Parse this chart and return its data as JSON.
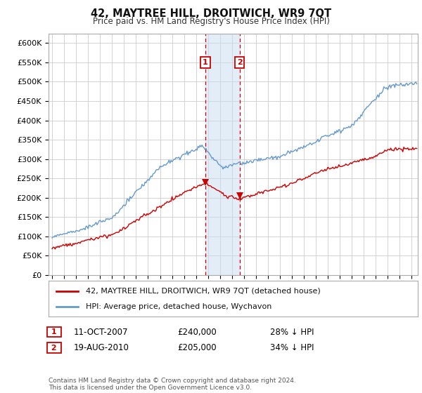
{
  "title": "42, MAYTREE HILL, DROITWICH, WR9 7QT",
  "subtitle": "Price paid vs. HM Land Registry's House Price Index (HPI)",
  "yticks": [
    0,
    50000,
    100000,
    150000,
    200000,
    250000,
    300000,
    350000,
    400000,
    450000,
    500000,
    550000,
    600000
  ],
  "ylim": [
    0,
    625000
  ],
  "xlim_start": 1994.7,
  "xlim_end": 2025.5,
  "sale_color": "#cc0000",
  "hpi_color": "#6699cc",
  "transaction1_date": 2007.78,
  "transaction2_date": 2010.63,
  "transaction1_price": 240000,
  "transaction2_price": 205000,
  "transaction1_label": "1",
  "transaction2_label": "2",
  "legend_sale_text": "42, MAYTREE HILL, DROITWICH, WR9 7QT (detached house)",
  "legend_hpi_text": "HPI: Average price, detached house, Wychavon",
  "note1_date": "11-OCT-2007",
  "note1_price": "£240,000",
  "note1_hpi": "28% ↓ HPI",
  "note2_date": "19-AUG-2010",
  "note2_price": "£205,000",
  "note2_hpi": "34% ↓ HPI",
  "footer": "Contains HM Land Registry data © Crown copyright and database right 2024.\nThis data is licensed under the Open Government Licence v3.0.",
  "background_color": "#ffffff",
  "grid_color": "#cccccc",
  "shade_color": "#c8dcf0",
  "shade_alpha": 0.5
}
